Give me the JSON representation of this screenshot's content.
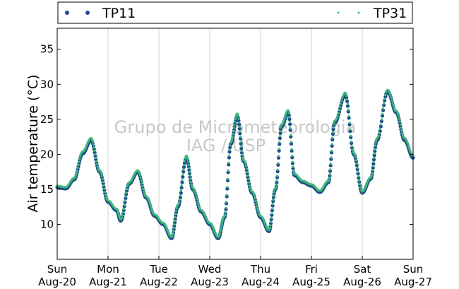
{
  "chart_data": {
    "type": "scatter",
    "title": "",
    "xlabel": "",
    "ylabel": "Air temperature (°C)",
    "ylim": [
      5,
      38
    ],
    "yticks": [
      10,
      15,
      20,
      25,
      30,
      35
    ],
    "xlim": [
      "Aug-20",
      "Aug-27"
    ],
    "xticks": [
      {
        "day": "Sun",
        "date": "Aug-20"
      },
      {
        "day": "Mon",
        "date": "Aug-21"
      },
      {
        "day": "Tue",
        "date": "Aug-22"
      },
      {
        "day": "Wed",
        "date": "Aug-23"
      },
      {
        "day": "Thu",
        "date": "Aug-24"
      },
      {
        "day": "Fri",
        "date": "Aug-25"
      },
      {
        "day": "Sat",
        "date": "Aug-26"
      },
      {
        "day": "Sun",
        "date": "Aug-27"
      }
    ],
    "grid": "vertical",
    "legend_position": "top",
    "watermark": [
      "Grupo de Micrometeorologia",
      "IAG / USP"
    ],
    "colors": {
      "TP11": "#1f4e8c",
      "TP31": "#3cb878"
    },
    "series": [
      {
        "name": "TP11",
        "marker": "circle",
        "x": [
          "Aug-20 00:00",
          "Aug-20 04:00",
          "Aug-20 08:00",
          "Aug-20 12:00",
          "Aug-20 16:00",
          "Aug-20 20:00",
          "Aug-21 00:00",
          "Aug-21 04:00",
          "Aug-21 06:00",
          "Aug-21 10:00",
          "Aug-21 14:00",
          "Aug-21 18:00",
          "Aug-21 22:00",
          "Aug-22 02:00",
          "Aug-22 06:00",
          "Aug-22 09:00",
          "Aug-22 13:00",
          "Aug-22 16:00",
          "Aug-22 20:00",
          "Aug-23 00:00",
          "Aug-23 04:00",
          "Aug-23 07:00",
          "Aug-23 10:00",
          "Aug-23 13:00",
          "Aug-23 16:00",
          "Aug-23 20:00",
          "Aug-24 00:00",
          "Aug-24 04:00",
          "Aug-24 07:00",
          "Aug-24 10:00",
          "Aug-24 13:00",
          "Aug-24 16:00",
          "Aug-24 20:00",
          "Aug-25 00:00",
          "Aug-25 04:00",
          "Aug-25 08:00",
          "Aug-25 11:00",
          "Aug-25 16:00",
          "Aug-25 20:00",
          "Aug-26 00:00",
          "Aug-26 04:00",
          "Aug-26 07:00",
          "Aug-26 12:00",
          "Aug-26 16:00",
          "Aug-26 20:00",
          "Aug-27 00:00"
        ],
        "y": [
          15.3,
          15.1,
          16.4,
          20.1,
          22.0,
          17.5,
          13.2,
          12.0,
          10.5,
          15.8,
          17.5,
          13.8,
          11.2,
          10.0,
          8.0,
          12.5,
          19.5,
          15.0,
          11.8,
          10.0,
          8.0,
          11.0,
          21.5,
          25.5,
          19.0,
          14.5,
          11.0,
          9.0,
          15.0,
          24.0,
          26.0,
          17.0,
          16.0,
          15.5,
          14.6,
          16.0,
          24.5,
          28.5,
          20.0,
          14.5,
          16.5,
          22.0,
          29.0,
          26.0,
          22.0,
          19.5
        ]
      },
      {
        "name": "TP31",
        "marker": "dot",
        "x": [
          "Aug-20 00:00",
          "Aug-20 04:00",
          "Aug-20 08:00",
          "Aug-20 12:00",
          "Aug-20 16:00",
          "Aug-20 20:00",
          "Aug-21 00:00",
          "Aug-21 04:00",
          "Aug-21 06:00",
          "Aug-21 10:00",
          "Aug-21 14:00",
          "Aug-21 18:00",
          "Aug-21 22:00",
          "Aug-22 02:00",
          "Aug-22 06:00",
          "Aug-22 09:00",
          "Aug-22 13:00",
          "Aug-22 16:00",
          "Aug-22 20:00",
          "Aug-23 00:00",
          "Aug-23 04:00",
          "Aug-23 07:00",
          "Aug-23 10:00",
          "Aug-23 13:00",
          "Aug-23 16:00",
          "Aug-23 20:00",
          "Aug-24 00:00",
          "Aug-24 04:00",
          "Aug-24 07:00",
          "Aug-24 10:00",
          "Aug-24 13:00",
          "Aug-24 16:00",
          "Aug-24 20:00",
          "Aug-25 00:00",
          "Aug-25 04:00",
          "Aug-25 08:00",
          "Aug-25 11:00",
          "Aug-25 16:00",
          "Aug-25 20:00",
          "Aug-26 00:00",
          "Aug-26 04:00",
          "Aug-26 07:00",
          "Aug-26 12:00",
          "Aug-26 16:00",
          "Aug-26 20:00",
          "Aug-27 00:00"
        ],
        "y": [
          15.5,
          15.3,
          16.6,
          20.4,
          22.3,
          17.7,
          13.4,
          12.2,
          10.7,
          16.0,
          17.7,
          14.0,
          11.4,
          10.2,
          8.2,
          12.8,
          19.8,
          15.2,
          12.0,
          10.2,
          8.2,
          11.2,
          21.8,
          25.8,
          19.2,
          14.7,
          11.2,
          9.2,
          15.2,
          24.3,
          26.3,
          17.2,
          16.2,
          15.7,
          14.8,
          16.2,
          24.8,
          28.8,
          20.2,
          14.7,
          16.7,
          22.3,
          29.2,
          26.2,
          22.3,
          19.8
        ]
      }
    ]
  }
}
